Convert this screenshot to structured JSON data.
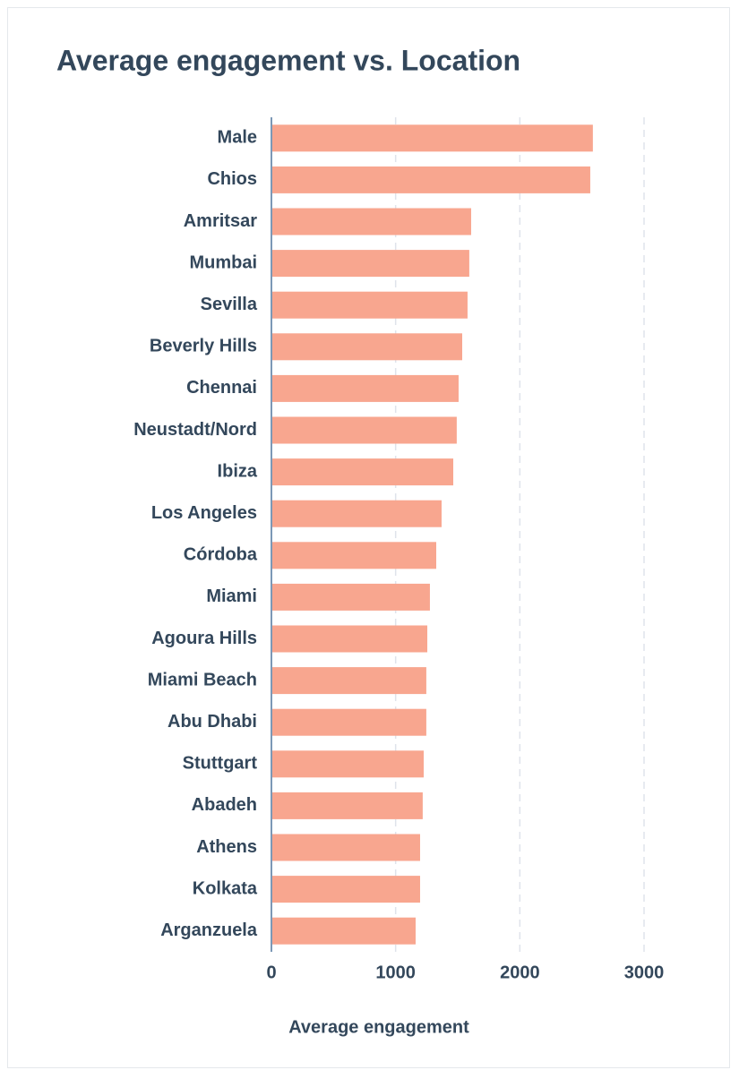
{
  "chart_data": {
    "type": "barh",
    "title": "Average engagement vs. Location",
    "xlabel": "Average engagement",
    "categories": [
      "Male",
      "Chios",
      "Amritsar",
      "Mumbai",
      "Sevilla",
      "Beverly Hills",
      "Chennai",
      "Neustadt/Nord",
      "Ibiza",
      "Los Angeles",
      "Córdoba",
      "Miami",
      "Agoura Hills",
      "Miami Beach",
      "Abu Dhabi",
      "Stuttgart",
      "Abadeh",
      "Athens",
      "Kolkata",
      "Arganzuela"
    ],
    "values": [
      2588,
      2567,
      1608,
      1593,
      1579,
      1536,
      1507,
      1492,
      1464,
      1370,
      1327,
      1276,
      1255,
      1247,
      1247,
      1226,
      1218,
      1197,
      1197,
      1161
    ],
    "color": "#f8a68f",
    "xlim": [
      0,
      3000
    ],
    "xticks": [
      0,
      1000,
      2000,
      3000
    ],
    "grid": true
  }
}
